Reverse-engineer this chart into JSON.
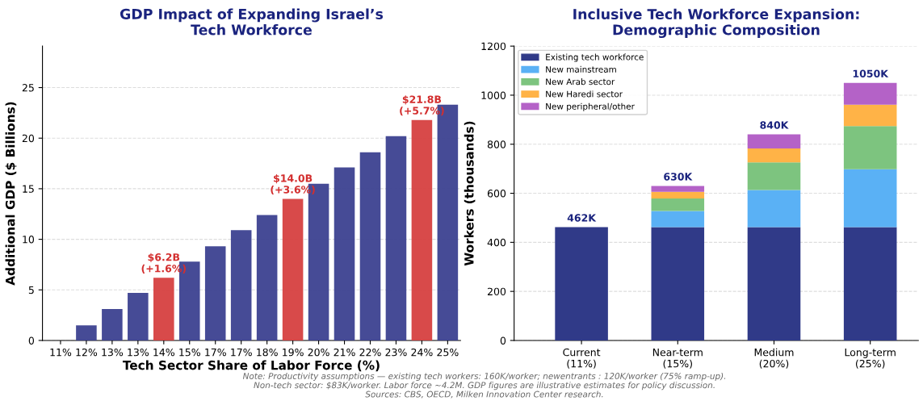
{
  "chart_data": [
    {
      "type": "bar",
      "title": "GDP Impact of Expanding Israel’s\nTech Workforce",
      "xlabel": "Tech Sector Share of Labor Force (%)",
      "ylabel": "Additional GDP ($ Billions)",
      "categories": [
        "11%",
        "12%",
        "13%",
        "13%",
        "14%",
        "15%",
        "17%",
        "17%",
        "18%",
        "19%",
        "20%",
        "21%",
        "22%",
        "23%",
        "24%",
        "25%"
      ],
      "values": [
        0,
        1.5,
        3.1,
        4.7,
        6.2,
        7.8,
        9.3,
        10.9,
        12.4,
        14.0,
        15.5,
        17.1,
        18.6,
        20.2,
        21.8,
        23.3
      ],
      "colors": [
        "#3c4190",
        "#3c4190",
        "#3c4190",
        "#3c4190",
        "#d64040",
        "#3c4190",
        "#3c4190",
        "#3c4190",
        "#3c4190",
        "#d64040",
        "#3c4190",
        "#3c4190",
        "#3c4190",
        "#3c4190",
        "#d64040",
        "#3c4190"
      ],
      "ylim": [
        0,
        29.1
      ],
      "yticks": [
        0,
        5,
        10,
        15,
        20,
        25
      ],
      "grid": "y",
      "annotations": [
        {
          "text": "$6.2B\n(+1.6%)",
          "x": "14%",
          "y": 6.2
        },
        {
          "text": "$14.0B\n(+3.6%)",
          "x": "19%",
          "y": 14.0
        },
        {
          "text": "$21.8B\n(+5.7%)",
          "x": "24%",
          "y": 21.8
        }
      ]
    },
    {
      "type": "bar",
      "title": "Inclusive Tech Workforce Expansion:\nDemographic Composition",
      "ylabel": "Workers (thousands)",
      "categories": [
        "Current\n(11%)",
        "Near-term\n(15%)",
        "Medium\n(20%)",
        "Long-term\n(25%)"
      ],
      "stacked": true,
      "series": [
        {
          "name": "Existing tech workforce",
          "color": "#303a88",
          "values": [
            462,
            462,
            462,
            462
          ]
        },
        {
          "name": "New mainstream",
          "color": "#5ab1f5",
          "values": [
            0,
            66,
            151,
            236
          ]
        },
        {
          "name": "New Arab sector",
          "color": "#7dc47f",
          "values": [
            0,
            51,
            113,
            176
          ]
        },
        {
          "name": "New Haredi sector",
          "color": "#ffb347",
          "values": [
            0,
            27,
            57,
            87
          ]
        },
        {
          "name": "New peripheral/other",
          "color": "#b462c7",
          "values": [
            0,
            24,
            57,
            89
          ]
        }
      ],
      "totals": [
        "462K",
        "630K",
        "840K",
        "1050K"
      ],
      "ylim": [
        0,
        1200
      ],
      "yticks": [
        0,
        200,
        400,
        600,
        800,
        1000,
        1200
      ],
      "grid": "y",
      "legend": "top left",
      "annotations": [
        "Note: Productivity assumptions — existing tech workers: 160K/worker; newentrants : 120K/worker (75% ramp-up).\nNon-tech sector: $83K/worker. Labor force ~4.2M. GDP figures are illustrative estimates for policy discussion.\nSources: CBS, OECD, Milken Innovation Center research."
      ]
    }
  ]
}
